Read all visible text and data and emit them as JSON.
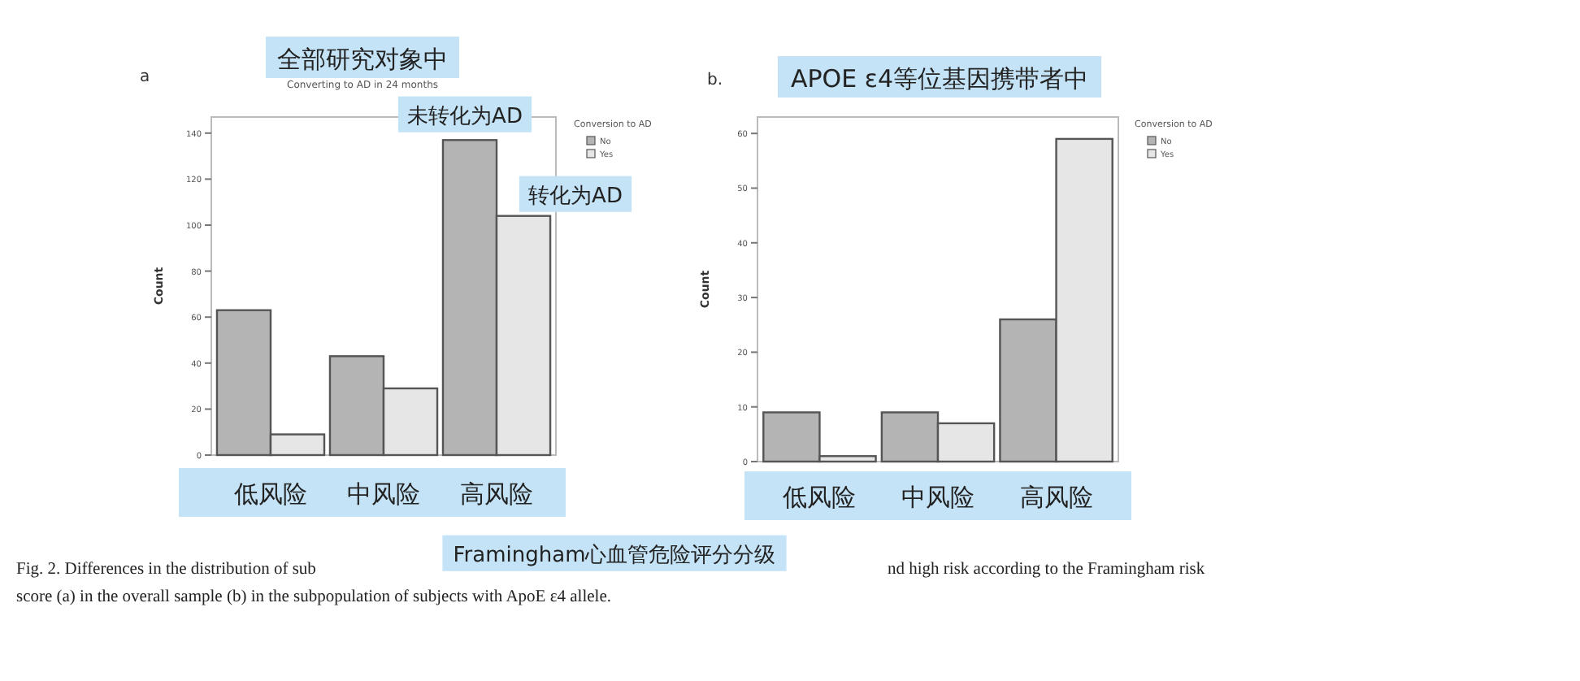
{
  "chart_data": [
    {
      "type": "bar",
      "title": "全部研究对象中",
      "subtitle": "Converting to AD in 24 months",
      "ylabel": "Count",
      "legend_title": "Conversion to AD",
      "legend": "right",
      "categories": [
        "低风险",
        "中风险",
        "高风险"
      ],
      "series": [
        {
          "name": "No",
          "color": "#b4b4b4",
          "values": [
            63,
            43,
            137
          ]
        },
        {
          "name": "Yes",
          "color": "#e6e6e6",
          "values": [
            9,
            29,
            104
          ]
        }
      ],
      "ylim": [
        0,
        147
      ],
      "yticks": [
        0,
        20,
        40,
        60,
        80,
        100,
        120,
        140
      ],
      "annotations": [
        "a",
        "未转化为AD",
        "转化为AD",
        "Framingham心血管危险评分分级",
        "Fig. 2. Differences in the distribution of sub",
        "nd high risk according to the Framingham risk",
        "score (a) in the overall sample (b) in the subpopulation of subjects with ApoE ε4 allele."
      ]
    },
    {
      "type": "bar",
      "title": "APOE ε4等位基因携带者中",
      "ylabel": "Count",
      "legend_title": "Conversion to AD",
      "legend": "right",
      "categories": [
        "低风险",
        "中风险",
        "高风险"
      ],
      "series": [
        {
          "name": "No",
          "color": "#b4b4b4",
          "values": [
            9,
            9,
            26
          ]
        },
        {
          "name": "Yes",
          "color": "#e6e6e6",
          "values": [
            1,
            7,
            59
          ]
        }
      ],
      "ylim": [
        0,
        63
      ],
      "yticks": [
        0,
        10,
        20,
        30,
        40,
        50,
        60
      ],
      "annotations": [
        "b."
      ]
    }
  ]
}
